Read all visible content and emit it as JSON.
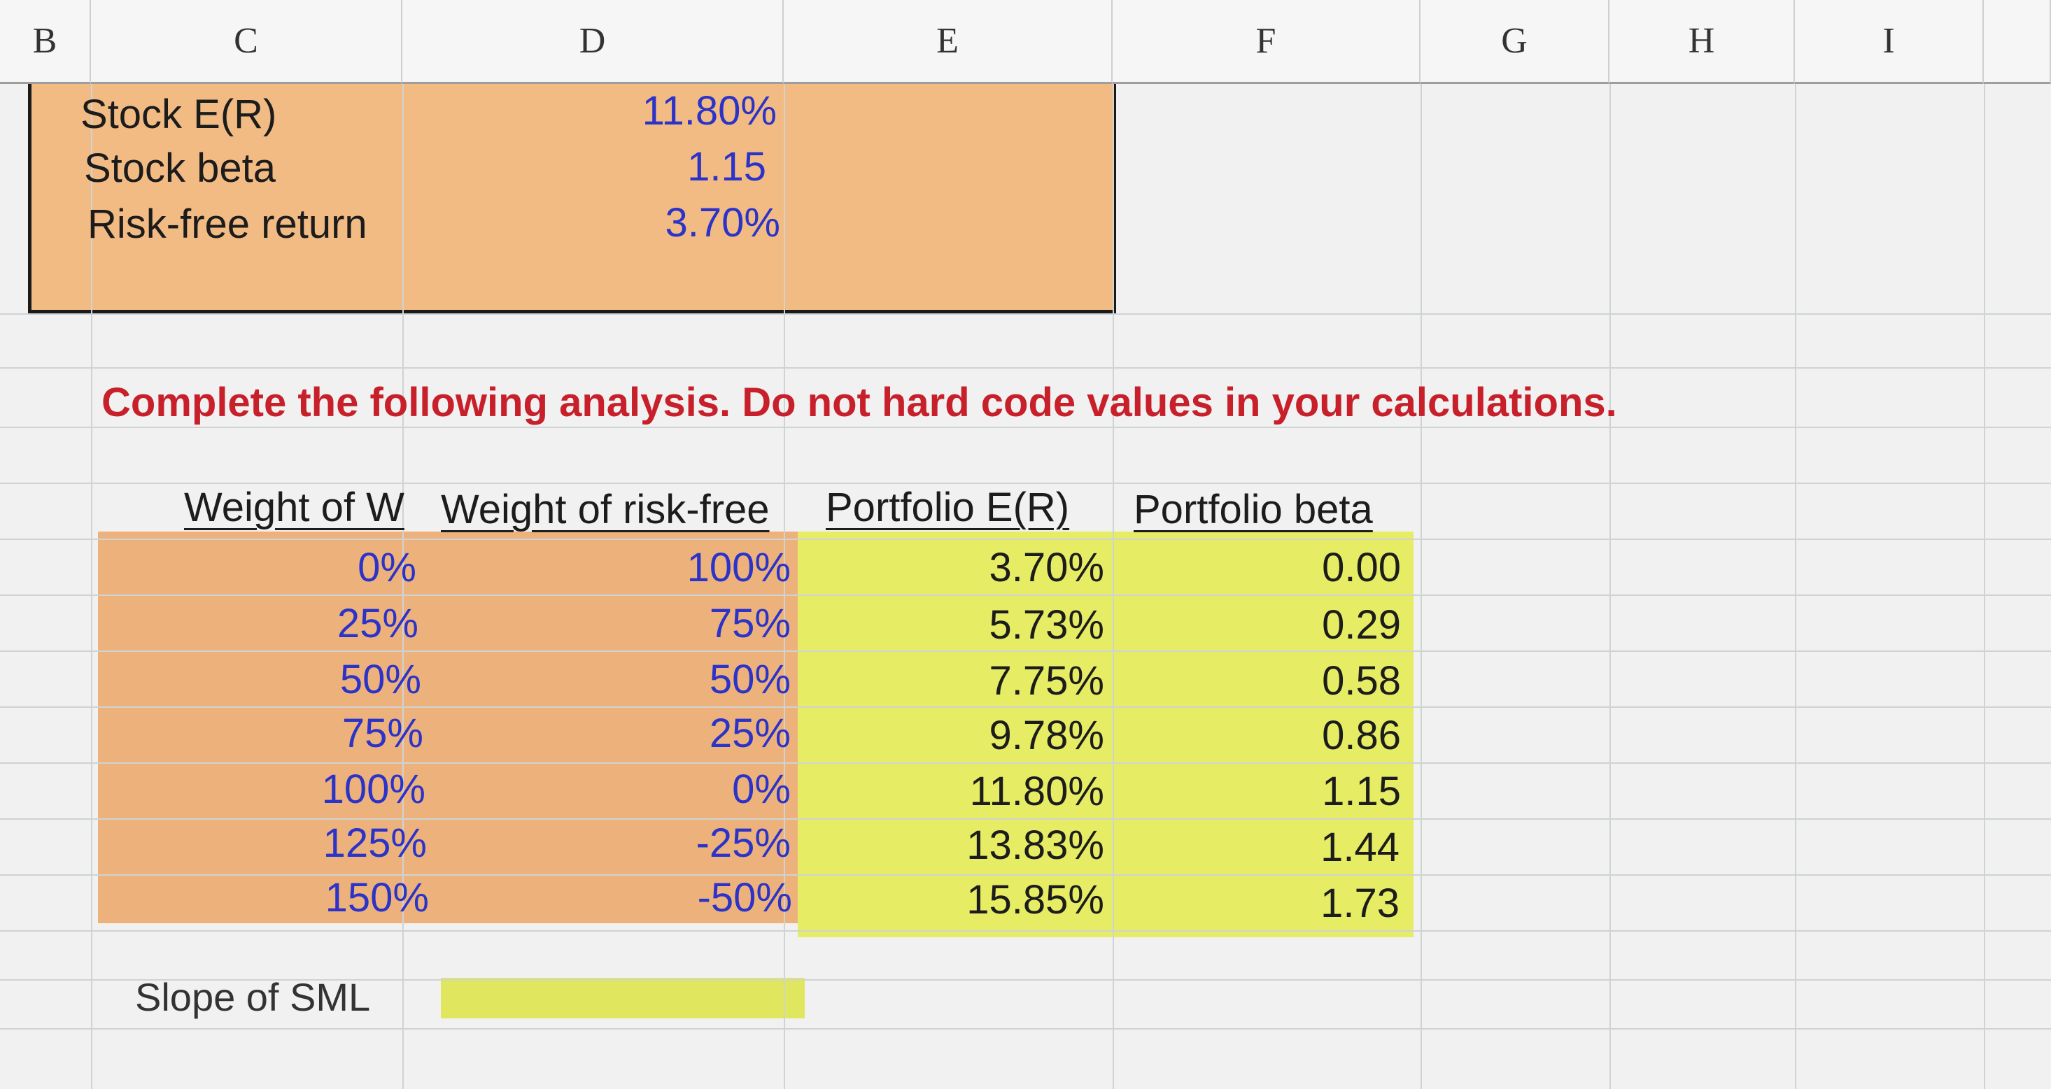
{
  "columns": [
    "B",
    "C",
    "D",
    "E",
    "F",
    "G",
    "H",
    "I"
  ],
  "inputs": [
    {
      "label": "Stock E(R)",
      "value": "11.80%"
    },
    {
      "label": "Stock beta",
      "value": "1.15"
    },
    {
      "label": "Risk-free return",
      "value": "3.70%"
    }
  ],
  "instruction": "Complete the following analysis. Do not hard code values in your calculations.",
  "table": {
    "headers": [
      "Weight of W",
      "Weight of risk-free",
      "Portfolio E(R)",
      "Portfolio beta"
    ],
    "rows": [
      [
        "0%",
        "100%",
        "3.70%",
        "0.00"
      ],
      [
        "25%",
        "75%",
        "5.73%",
        "0.29"
      ],
      [
        "50%",
        "50%",
        "7.75%",
        "0.58"
      ],
      [
        "75%",
        "25%",
        "9.78%",
        "0.86"
      ],
      [
        "100%",
        "0%",
        "11.80%",
        "1.15"
      ],
      [
        "125%",
        "-25%",
        "13.83%",
        "1.44"
      ],
      [
        "150%",
        "-50%",
        "15.85%",
        "1.73"
      ]
    ]
  },
  "slope": {
    "label": "Slope of SML",
    "value": ""
  },
  "colors": {
    "input_fill": "#f2bb84",
    "output_fill": "#e6ec63",
    "value_blue": "#2b33c8",
    "instruction_red": "#c8202b"
  }
}
